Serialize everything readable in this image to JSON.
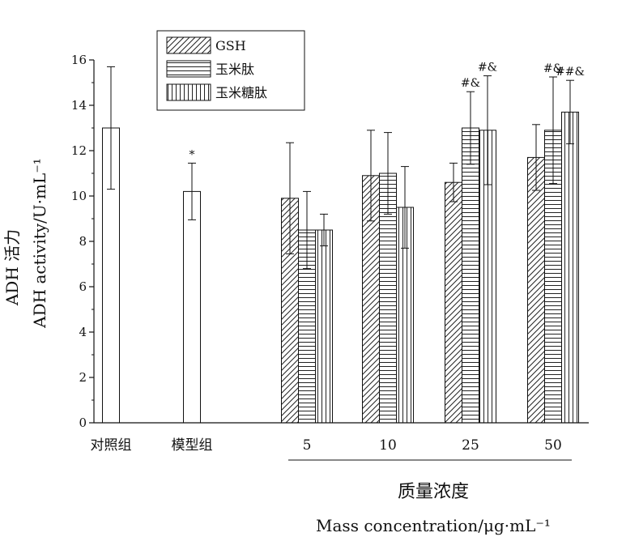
{
  "chart_data": {
    "type": "bar",
    "ylabel_line1": "ADH 活力",
    "ylabel_line2": "ADH activity/U·mL⁻¹",
    "xlabel_line1": "质量浓度",
    "xlabel_line2": "Mass concentration/μg·mL⁻¹",
    "ylim": [
      0,
      16
    ],
    "yticks": [
      "0",
      "2",
      "4",
      "6",
      "8",
      "10",
      "12",
      "14",
      "16"
    ],
    "legend_position": "top-left",
    "series": [
      {
        "name": "GSH",
        "pattern": "diagonal"
      },
      {
        "name": "玉米肽",
        "pattern": "horizontal"
      },
      {
        "name": "玉米糖肽",
        "pattern": "vertical"
      }
    ],
    "groups": [
      {
        "label": "对照组",
        "bars": [
          {
            "series": null,
            "value": 13.0,
            "error": 2.7,
            "annotation": ""
          }
        ]
      },
      {
        "label": "模型组",
        "bars": [
          {
            "series": null,
            "value": 10.2,
            "error": 1.25,
            "annotation": "*"
          }
        ]
      },
      {
        "label": "5",
        "bars": [
          {
            "series": "GSH",
            "value": 9.9,
            "error": 2.45,
            "annotation": ""
          },
          {
            "series": "玉米肽",
            "value": 8.5,
            "error": 1.7,
            "annotation": ""
          },
          {
            "series": "玉米糖肽",
            "value": 8.5,
            "error": 0.7,
            "annotation": ""
          }
        ]
      },
      {
        "label": "10",
        "bars": [
          {
            "series": "GSH",
            "value": 10.9,
            "error": 2.0,
            "annotation": ""
          },
          {
            "series": "玉米肽",
            "value": 11.0,
            "error": 1.8,
            "annotation": ""
          },
          {
            "series": "玉米糖肽",
            "value": 9.5,
            "error": 1.8,
            "annotation": ""
          }
        ]
      },
      {
        "label": "25",
        "bars": [
          {
            "series": "GSH",
            "value": 10.6,
            "error": 0.85,
            "annotation": ""
          },
          {
            "series": "玉米肽",
            "value": 13.0,
            "error": 1.6,
            "annotation": "#&"
          },
          {
            "series": "玉米糖肽",
            "value": 12.9,
            "error": 2.4,
            "annotation": "#&"
          }
        ]
      },
      {
        "label": "50",
        "bars": [
          {
            "series": "GSH",
            "value": 11.7,
            "error": 1.45,
            "annotation": ""
          },
          {
            "series": "玉米肽",
            "value": 12.9,
            "error": 2.35,
            "annotation": "#&"
          },
          {
            "series": "玉米糖肽",
            "value": 13.7,
            "error": 1.4,
            "annotation": "##&"
          }
        ]
      }
    ]
  }
}
